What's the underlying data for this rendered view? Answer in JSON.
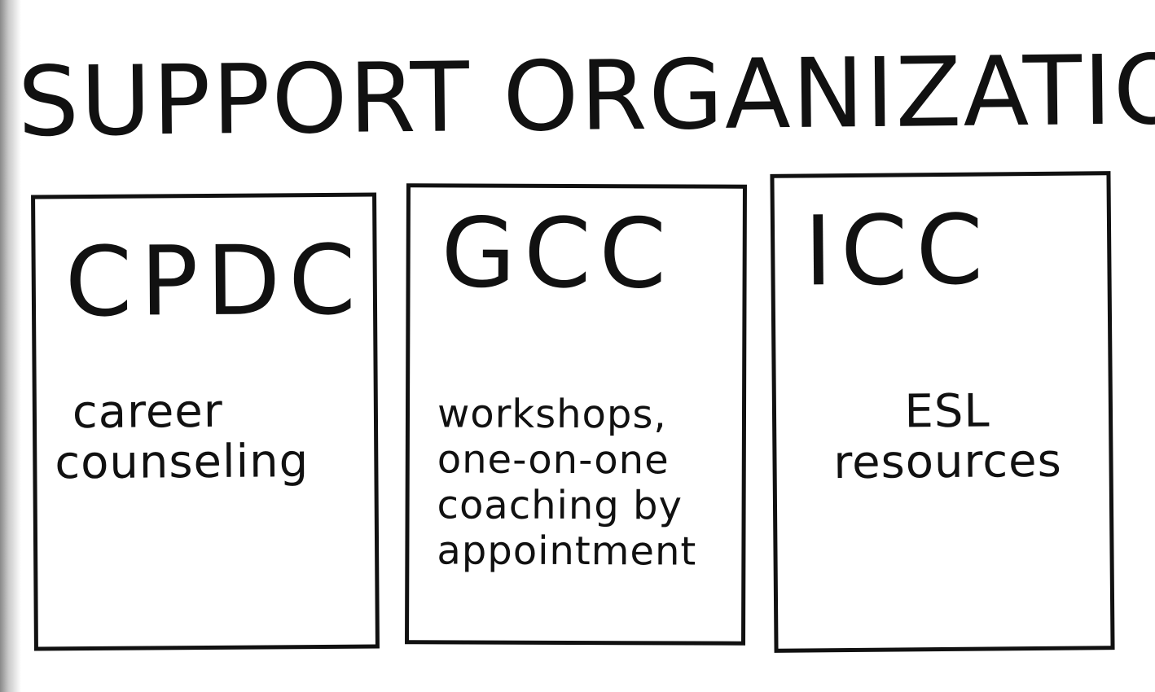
{
  "title": "SUPPORT ORGANIZATIONS",
  "cards": [
    {
      "name": "CPDC",
      "description": [
        "career",
        "counseling"
      ]
    },
    {
      "name": "GCC",
      "description": [
        "workshops,",
        "one-on-one",
        "coaching by",
        "appointment"
      ]
    },
    {
      "name": "ICC",
      "description": [
        "ESL",
        "resources"
      ]
    }
  ]
}
